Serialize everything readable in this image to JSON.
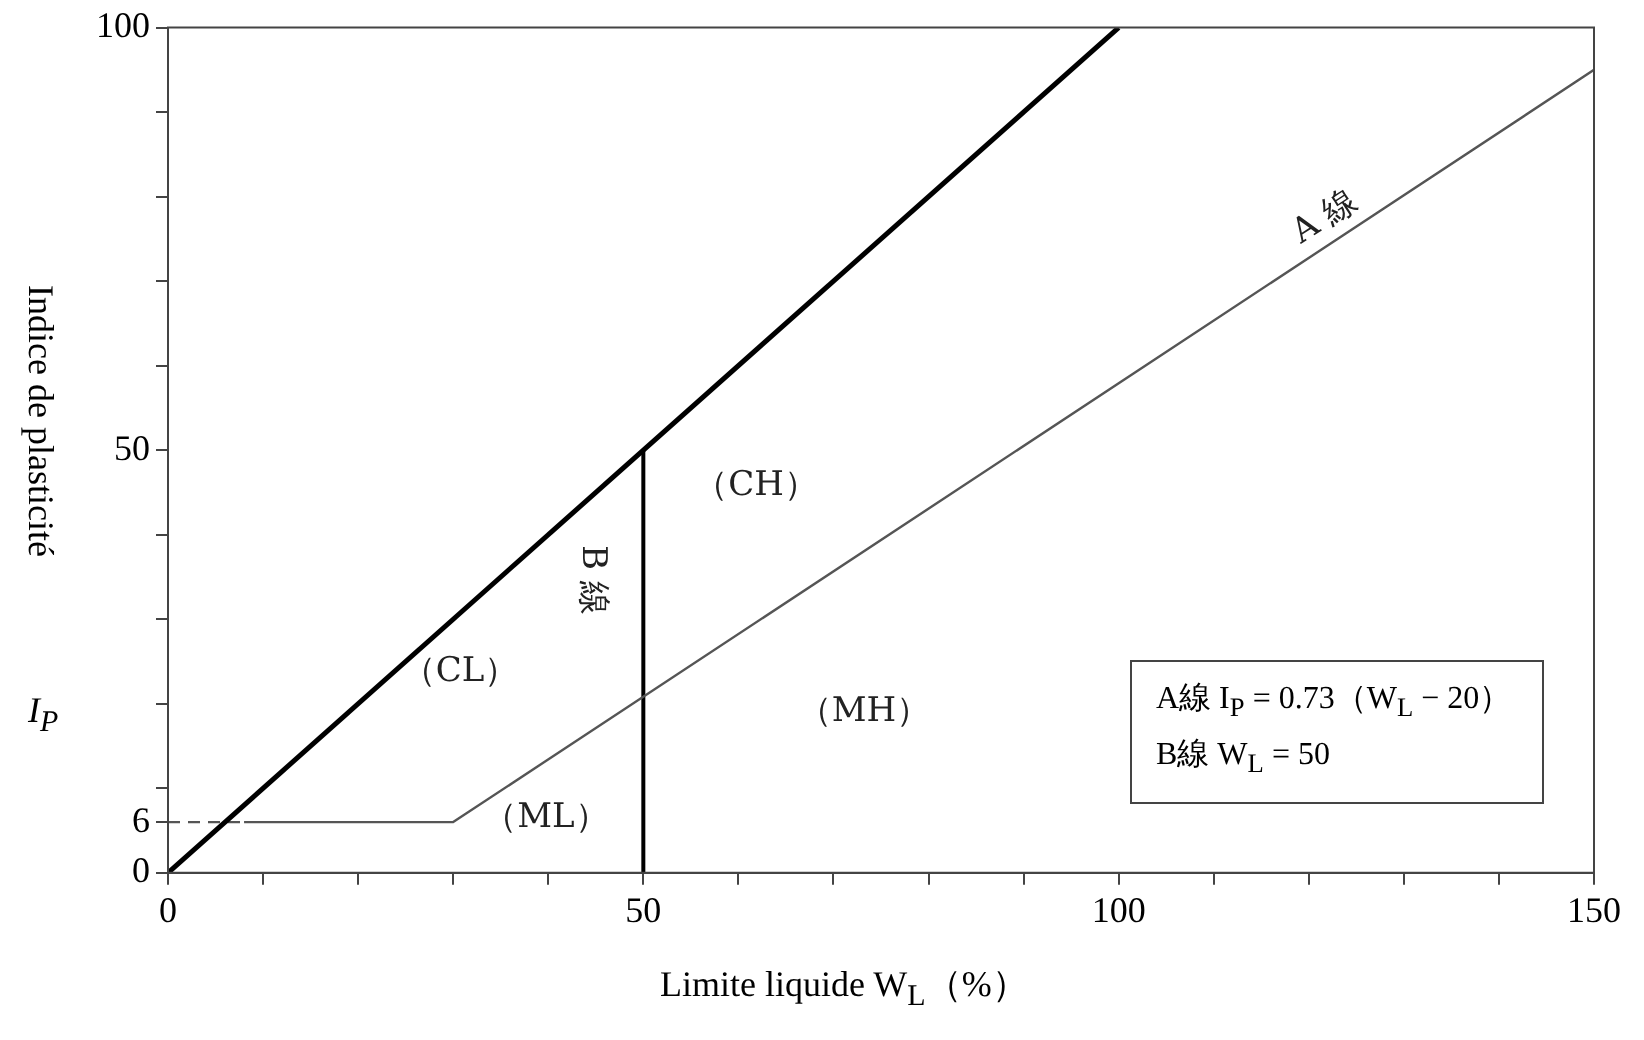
{
  "chart_data": {
    "type": "line",
    "xlabel": "Limite liquide  W$_{L}$（%）",
    "ylabel": "Indice de plasticité",
    "xlim": [
      0,
      150
    ],
    "ylim": [
      0,
      100
    ],
    "xticks": [
      0,
      {
        "value": 10,
        "label": null
      },
      {
        "value": 20,
        "label": null
      },
      {
        "value": 30,
        "label": null
      },
      {
        "value": 40,
        "label": null
      },
      50,
      {
        "value": 60,
        "label": null
      },
      {
        "value": 70,
        "label": null
      },
      {
        "value": 80,
        "label": null
      },
      {
        "value": 90,
        "label": null
      },
      100,
      {
        "value": 110,
        "label": null
      },
      {
        "value": 120,
        "label": null
      },
      {
        "value": 130,
        "label": null
      },
      {
        "value": 140,
        "label": null
      },
      150
    ],
    "yticks": [
      0,
      6,
      {
        "value": 10,
        "label": null
      },
      {
        "value": 20,
        "label": null
      },
      {
        "value": 30,
        "label": null
      },
      {
        "value": 40,
        "label": null
      },
      50,
      {
        "value": 60,
        "label": null
      },
      {
        "value": 70,
        "label": null
      },
      {
        "value": 80,
        "label": null
      },
      {
        "value": 90,
        "label": null
      },
      100
    ],
    "grid": false,
    "legend": false,
    "marker": "none",
    "series": [
      {
        "color": "#000000",
        "x": [
          0,
          100
        ],
        "values": [
          0,
          100
        ]
      },
      {
        "color": "#555555",
        "x": [
          8,
          30,
          150
        ],
        "values": [
          6,
          6,
          95
        ]
      },
      {
        "color": "#000000",
        "x": [
          50,
          50
        ],
        "values": [
          0,
          50
        ]
      },
      {
        "color": "#555555",
        "x": [
          0,
          8
        ],
        "values": [
          6,
          6
        ],
        "line_style": "dashed"
      }
    ],
    "annotations": [
      "I$_{P}$",
      "（CL）",
      "（ML）",
      "（CH）",
      "（MH）",
      "A 線",
      "B 線",
      "A線 I$_{P}$ = 0.73（W$_{L}$ − 20）",
      "B線 W$_{L}$ = 50"
    ]
  }
}
